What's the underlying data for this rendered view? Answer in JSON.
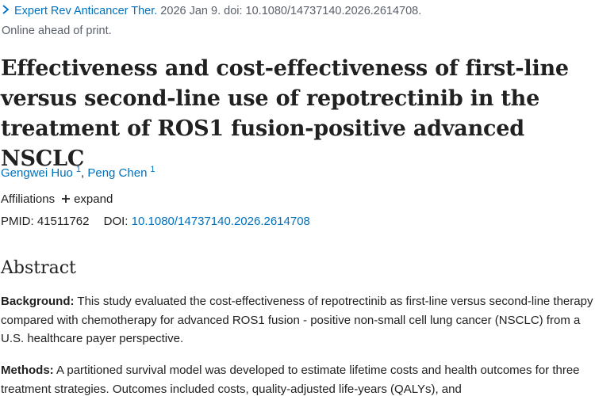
{
  "citation": {
    "journal": "Expert Rev Anticancer Ther.",
    "details": " 2026 Jan 9. doi: 10.1080/14737140.2026.2614708.",
    "status": "Online ahead of print."
  },
  "title": "Effectiveness and cost-effectiveness of first-line versus second-line use of repotrectinib in the treatment of ROS1 fusion-positive advanced NSCLC",
  "authors": [
    {
      "name": "Gengwei Huo",
      "aff": "1"
    },
    {
      "name": "Peng Chen",
      "aff": "1"
    }
  ],
  "author_separator": ", ",
  "affiliations": {
    "label": "Affiliations",
    "expand": "expand"
  },
  "ids": {
    "pmid_label": "PMID:",
    "pmid": "41511762",
    "doi_label": "DOI:",
    "doi": "10.1080/14737140.2026.2614708"
  },
  "abstract": {
    "heading": "Abstract",
    "background_label": "Background:",
    "background_text": " This study evaluated the cost-effectiveness of repotrectinib as first-line versus second-line therapy compared with chemotherapy for advanced ROS1 fusion - positive non-small cell lung cancer (NSCLC) from a U.S. healthcare payer perspective.",
    "methods_label": "Methods:",
    "methods_text": " A partitioned survival model was developed to estimate lifetime costs and health outcomes for three treatment strategies. Outcomes included costs, quality-adjusted life-years (QALYs), and"
  },
  "colors": {
    "link": "#0071bc",
    "text": "#212121",
    "muted": "#5b616b"
  },
  "icons": [
    "chevron-right-icon",
    "plus-icon"
  ]
}
